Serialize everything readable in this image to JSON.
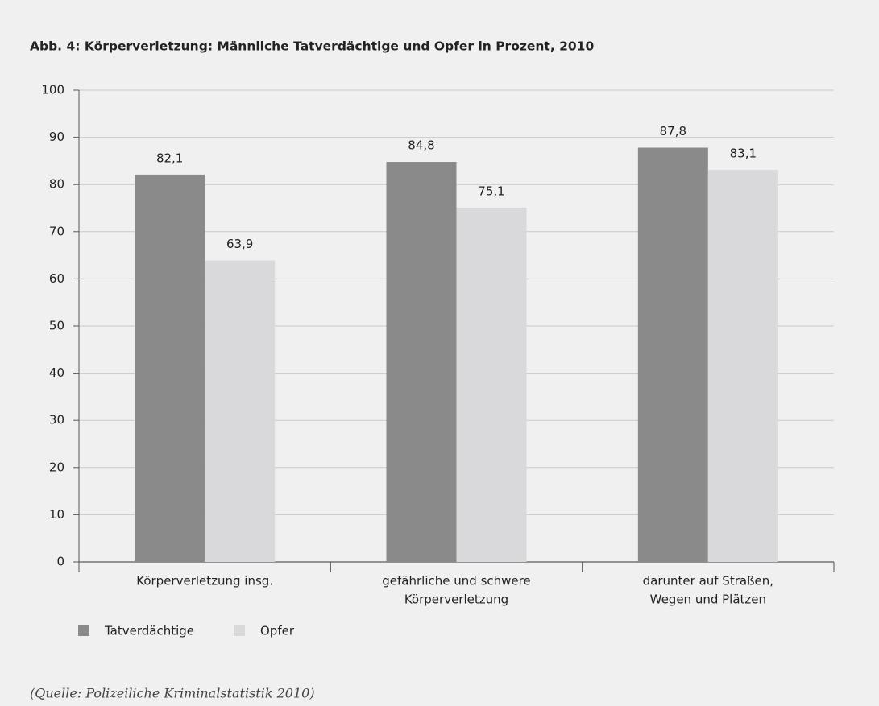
{
  "chart_data": {
    "type": "bar",
    "title": "Abb. 4: Körperverletzung: Männliche Tatverdächtige und Opfer in Prozent, 2010",
    "categories": [
      [
        "Körperverletzung insg."
      ],
      [
        "gefährliche und schwere",
        "Körperverletzung"
      ],
      [
        "darunter auf Straßen,",
        "Wegen und Plätzen"
      ]
    ],
    "series": [
      {
        "name": "Tatverdächtige",
        "color": "#8a8a8b",
        "values": [
          82.1,
          84.8,
          87.8
        ],
        "value_labels": [
          "82,1",
          "84,8",
          "87,8"
        ]
      },
      {
        "name": "Opfer",
        "color": "#d9d9db",
        "values": [
          63.9,
          75.1,
          83.1
        ],
        "value_labels": [
          "63,9",
          "75,1",
          "83,1"
        ]
      }
    ],
    "ylim": [
      0,
      100
    ],
    "yticks": [
      0,
      10,
      20,
      30,
      40,
      50,
      60,
      70,
      80,
      90,
      100
    ],
    "grid": true,
    "source": "(Quelle: Polizeiliche Kriminalstatistik 2010)"
  }
}
